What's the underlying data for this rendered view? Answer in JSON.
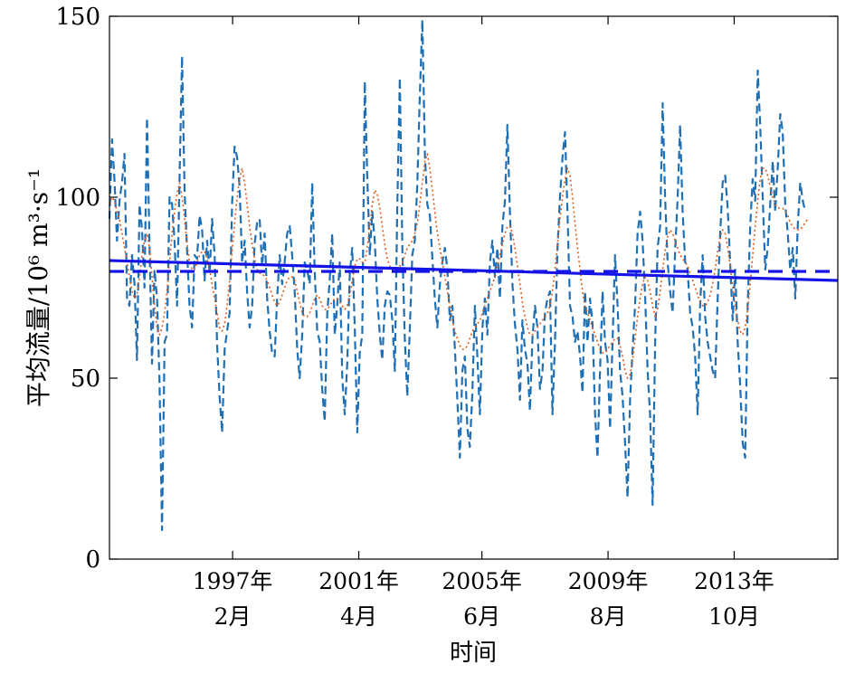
{
  "chart_data": {
    "type": "line",
    "ylabel": "平均流量/10⁶ m³·s⁻¹",
    "xlabel": "时间",
    "ylim": [
      0,
      150
    ],
    "xlim": [
      1993.0,
      2017.25
    ],
    "yticks": [
      0,
      50,
      100,
      150
    ],
    "xticks": [
      {
        "x": 1997.1,
        "line1": "1997年",
        "line2": "2月"
      },
      {
        "x": 2001.3,
        "line1": "2001年",
        "line2": "4月"
      },
      {
        "x": 2005.4,
        "line1": "2005年",
        "line2": "6月"
      },
      {
        "x": 2009.6,
        "line1": "2009年",
        "line2": "8月"
      },
      {
        "x": 2013.8,
        "line1": "2013年",
        "line2": "10月"
      }
    ],
    "grid": false,
    "legend": "none",
    "colors": {
      "raw": "#1f6fb4",
      "smoothed": "#e05a1a",
      "trend": "#1414e6",
      "mean": "#1414e6",
      "axis": "#000000"
    },
    "series": [
      {
        "role": "raw",
        "x_start": 1993.0,
        "step": 0.083333,
        "values": [
          94,
          116,
          105,
          88,
          99,
          104,
          112,
          72,
          70,
          84,
          76,
          55,
          98,
          91,
          75,
          122,
          86,
          54,
          80,
          72,
          49,
          8,
          60,
          62,
          100,
          98,
          88,
          70,
          106,
          139,
          102,
          85,
          70,
          64,
          84,
          83,
          95,
          91,
          77,
          88,
          79,
          94,
          84,
          59,
          45,
          35,
          58,
          63,
          68,
          98,
          114,
          111,
          103,
          82,
          88,
          74,
          64,
          70,
          87,
          93,
          94,
          81,
          90,
          72,
          63,
          57,
          56,
          72,
          84,
          76,
          82,
          90,
          92,
          84,
          74,
          58,
          50,
          62,
          82,
          80,
          76,
          104,
          80,
          63,
          60,
          47,
          38,
          68,
          77,
          90,
          62,
          70,
          82,
          50,
          40,
          54,
          79,
          86,
          64,
          35,
          57,
          62,
          132,
          106,
          84,
          96,
          88,
          72,
          62,
          55,
          70,
          74,
          73,
          66,
          52,
          97,
          133,
          86,
          61,
          45,
          64,
          84,
          88,
          104,
          128,
          149,
          112,
          98,
          95,
          83,
          72,
          64,
          76,
          82,
          86,
          80,
          66,
          70,
          58,
          44,
          28,
          52,
          56,
          36,
          31,
          46,
          70,
          56,
          40,
          64,
          72,
          62,
          82,
          88,
          78,
          86,
          72,
          92,
          99,
          120,
          96,
          76,
          65,
          58,
          44,
          66,
          58,
          54,
          41,
          61,
          70,
          64,
          47,
          52,
          68,
          72,
          74,
          40,
          60,
          86,
          100,
          111,
          118,
          96,
          70,
          67,
          60,
          63,
          56,
          46,
          74,
          60,
          72,
          65,
          40,
          28,
          52,
          74,
          60,
          55,
          36,
          60,
          84,
          70,
          52,
          45,
          32,
          17,
          44,
          58,
          70,
          90,
          96,
          88,
          73,
          52,
          40,
          15,
          60,
          86,
          92,
          126,
          100,
          82,
          74,
          68,
          85,
          100,
          120,
          96,
          82,
          80,
          68,
          64,
          56,
          40,
          70,
          84,
          67,
          60,
          56,
          52,
          50,
          72,
          90,
          104,
          106,
          97,
          82,
          66,
          80,
          60,
          48,
          32,
          28,
          70,
          92,
          105,
          99,
          135,
          120,
          100,
          80,
          86,
          98,
          110,
          96,
          108,
          123,
          118,
          98,
          90,
          80,
          86,
          72,
          92,
          104,
          99,
          96
        ]
      },
      {
        "role": "smoothed",
        "x_start": 1993.0,
        "step": 0.083333,
        "values": [
          98,
          100,
          99,
          96,
          94,
          90,
          86,
          82,
          78,
          74,
          72,
          73,
          78,
          84,
          88,
          90,
          86,
          78,
          70,
          64,
          62,
          64,
          68,
          74,
          82,
          90,
          96,
          101,
          104,
          100,
          94,
          87,
          82,
          80,
          80,
          82,
          84,
          85,
          85,
          83,
          80,
          76,
          72,
          68,
          64,
          63,
          65,
          70,
          77,
          85,
          93,
          100,
          105,
          108,
          104,
          98,
          92,
          87,
          83,
          80,
          79,
          79,
          78,
          77,
          75,
          73,
          71,
          70,
          71,
          73,
          75,
          77,
          78,
          78,
          77,
          74,
          71,
          68,
          67,
          67,
          68,
          70,
          72,
          73,
          72,
          70,
          69,
          69,
          70,
          71,
          72,
          72,
          71,
          70,
          69,
          70,
          73,
          77,
          81,
          83,
          83,
          82,
          82,
          86,
          92,
          98,
          102,
          101,
          97,
          92,
          87,
          83,
          81,
          80,
          80,
          80,
          81,
          82,
          84,
          86,
          87,
          88,
          90,
          93,
          98,
          104,
          110,
          112,
          108,
          102,
          96,
          90,
          86,
          82,
          78,
          74,
          70,
          66,
          63,
          61,
          59,
          58,
          58,
          59,
          61,
          63,
          64,
          65,
          66,
          68,
          70,
          72,
          74,
          76,
          78,
          81,
          84,
          87,
          90,
          92,
          92,
          90,
          86,
          81,
          76,
          71,
          67,
          64,
          62,
          62,
          63,
          64,
          65,
          66,
          67,
          68,
          70,
          74,
          80,
          87,
          94,
          100,
          105,
          108,
          106,
          100,
          93,
          86,
          80,
          74,
          70,
          68,
          66,
          64,
          62,
          60,
          58,
          57,
          57,
          58,
          59,
          60,
          61,
          61,
          59,
          56,
          52,
          50,
          51,
          55,
          61,
          67,
          72,
          76,
          78,
          77,
          74,
          70,
          67,
          69,
          74,
          80,
          85,
          89,
          91,
          90,
          88,
          86,
          84,
          83,
          82,
          81,
          79,
          77,
          75,
          73,
          71,
          70,
          70,
          71,
          73,
          76,
          80,
          85,
          89,
          91,
          90,
          86,
          81,
          75,
          70,
          66,
          63,
          62,
          64,
          69,
          76,
          84,
          92,
          99,
          105,
          108,
          108,
          106,
          103,
          100,
          98,
          97,
          97,
          97,
          96,
          95,
          93,
          92,
          91,
          91,
          91,
          92,
          93,
          94
        ]
      },
      {
        "role": "trend",
        "x": [
          1993.0,
          2017.25
        ],
        "values": [
          82.5,
          77.0
        ]
      },
      {
        "role": "mean",
        "x": [
          1993.0,
          2017.25
        ],
        "values": [
          79.5,
          79.5
        ]
      }
    ]
  }
}
